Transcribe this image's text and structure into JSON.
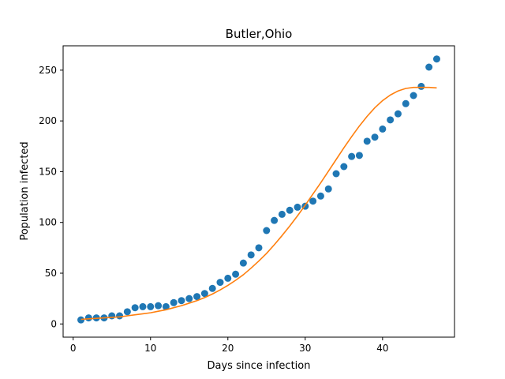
{
  "chart_data": {
    "type": "scatter",
    "title": "Butler,Ohio",
    "xlabel": "Days since infection",
    "ylabel": "Population infected",
    "xlim": [
      -1.3,
      49.3
    ],
    "ylim": [
      -13,
      274
    ],
    "xticks": [
      0,
      10,
      20,
      30,
      40
    ],
    "yticks": [
      0,
      50,
      100,
      150,
      200,
      250
    ],
    "grid": false,
    "series": [
      {
        "kind": "scatter",
        "color": "#1f77b4",
        "x": [
          1,
          2,
          3,
          4,
          5,
          6,
          7,
          8,
          9,
          10,
          11,
          12,
          13,
          14,
          15,
          16,
          17,
          18,
          19,
          20,
          21,
          22,
          23,
          24,
          25,
          26,
          27,
          28,
          29,
          30,
          31,
          32,
          33,
          34,
          35,
          36,
          37,
          38,
          39,
          40,
          41,
          42,
          43,
          44,
          45,
          46,
          47
        ],
        "y": [
          4,
          6,
          6,
          6,
          8,
          8,
          12,
          16,
          17,
          17,
          18,
          17,
          21,
          23,
          25,
          27,
          30,
          35,
          41,
          45,
          49,
          60,
          68,
          75,
          92,
          102,
          108,
          112,
          115,
          116,
          121,
          126,
          133,
          148,
          155,
          165,
          166,
          180,
          184,
          192,
          201,
          207,
          217,
          225,
          234,
          253,
          261
        ]
      },
      {
        "kind": "line",
        "color": "#ff7f0e",
        "x": [
          1,
          2,
          3,
          4,
          5,
          6,
          7,
          8,
          9,
          10,
          11,
          12,
          13,
          14,
          15,
          16,
          17,
          18,
          19,
          20,
          21,
          22,
          23,
          24,
          25,
          26,
          27,
          28,
          29,
          30,
          31,
          32,
          33,
          34,
          35,
          36,
          37,
          38,
          39,
          40,
          41,
          42,
          43,
          44,
          45,
          46,
          47
        ],
        "y": [
          4.5,
          5,
          5.5,
          6,
          6.5,
          7,
          8,
          9,
          10,
          11,
          12.5,
          14,
          16,
          18,
          20.5,
          23,
          26,
          29.5,
          33.5,
          38,
          43,
          48.5,
          55,
          62,
          69.5,
          78,
          87,
          96.5,
          106.5,
          117,
          128,
          139,
          150.5,
          162,
          173.5,
          184.5,
          195,
          204.5,
          213,
          220,
          225.5,
          229.5,
          232,
          233,
          233,
          233,
          232.5
        ]
      }
    ]
  }
}
